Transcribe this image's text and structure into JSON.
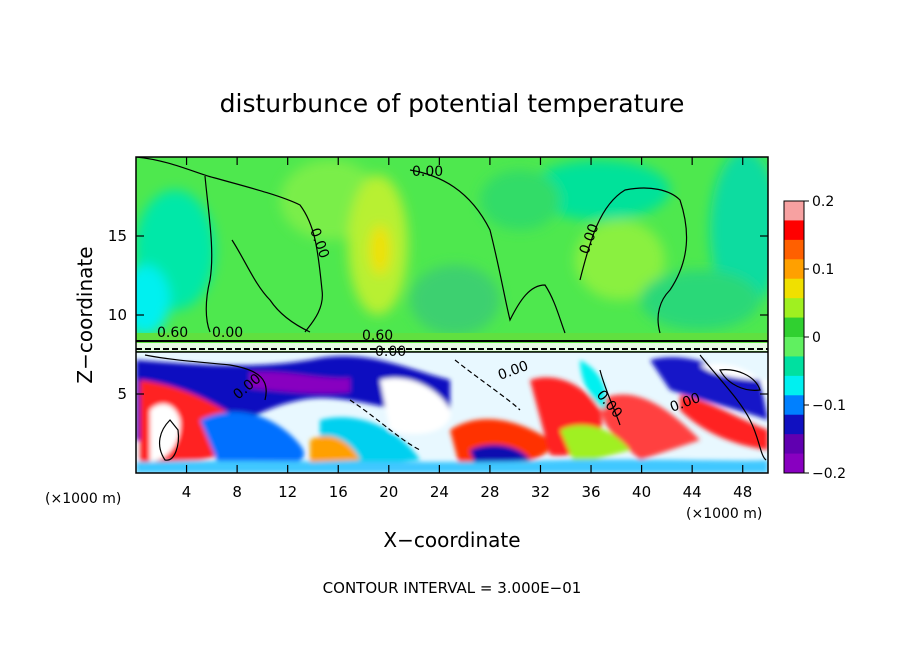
{
  "chart_data": {
    "type": "heatmap",
    "title": "disturbunce of potential temperature",
    "xlabel": "X−coordinate",
    "ylabel": "Z−coordinate",
    "xunit_left": "(×1000 m)",
    "xunit_right": "(×1000 m)",
    "footer": "CONTOUR INTERVAL = 3.000E−01",
    "xlim": [
      0,
      50
    ],
    "ylim": [
      0,
      20
    ],
    "xticks": [
      4,
      8,
      12,
      16,
      20,
      24,
      28,
      32,
      36,
      40,
      44,
      48
    ],
    "xtick_labels": [
      "4",
      "8",
      "12",
      "16",
      "20",
      "24",
      "28",
      "32",
      "36",
      "40",
      "44",
      "48"
    ],
    "yticks": [
      5,
      10,
      15
    ],
    "ytick_labels": [
      "5",
      "10",
      "15"
    ],
    "colorbar": {
      "min": -0.2,
      "max": 0.2,
      "ticks": [
        0.2,
        0.1,
        0,
        -0.1,
        -0.2
      ],
      "tick_labels": [
        "0.2",
        "0.1",
        "0",
        "−0.1",
        "−0.2"
      ],
      "colors": [
        "#f7a1a1",
        "#ff0000",
        "#ff6000",
        "#ffa000",
        "#f0e000",
        "#a0f020",
        "#30d030",
        "#60f060",
        "#00e0a0",
        "#00f0f0",
        "#0080ff",
        "#1010c0",
        "#6000b0",
        "#8800c0"
      ]
    },
    "contour_labels": [
      "0.00",
      "0.00",
      "0.00",
      "0.00",
      "0.00",
      "0.60",
      "0.00",
      "0.60",
      "0.00",
      "0.00",
      "0.00"
    ],
    "contour_interval": 0.3,
    "grid": false
  }
}
